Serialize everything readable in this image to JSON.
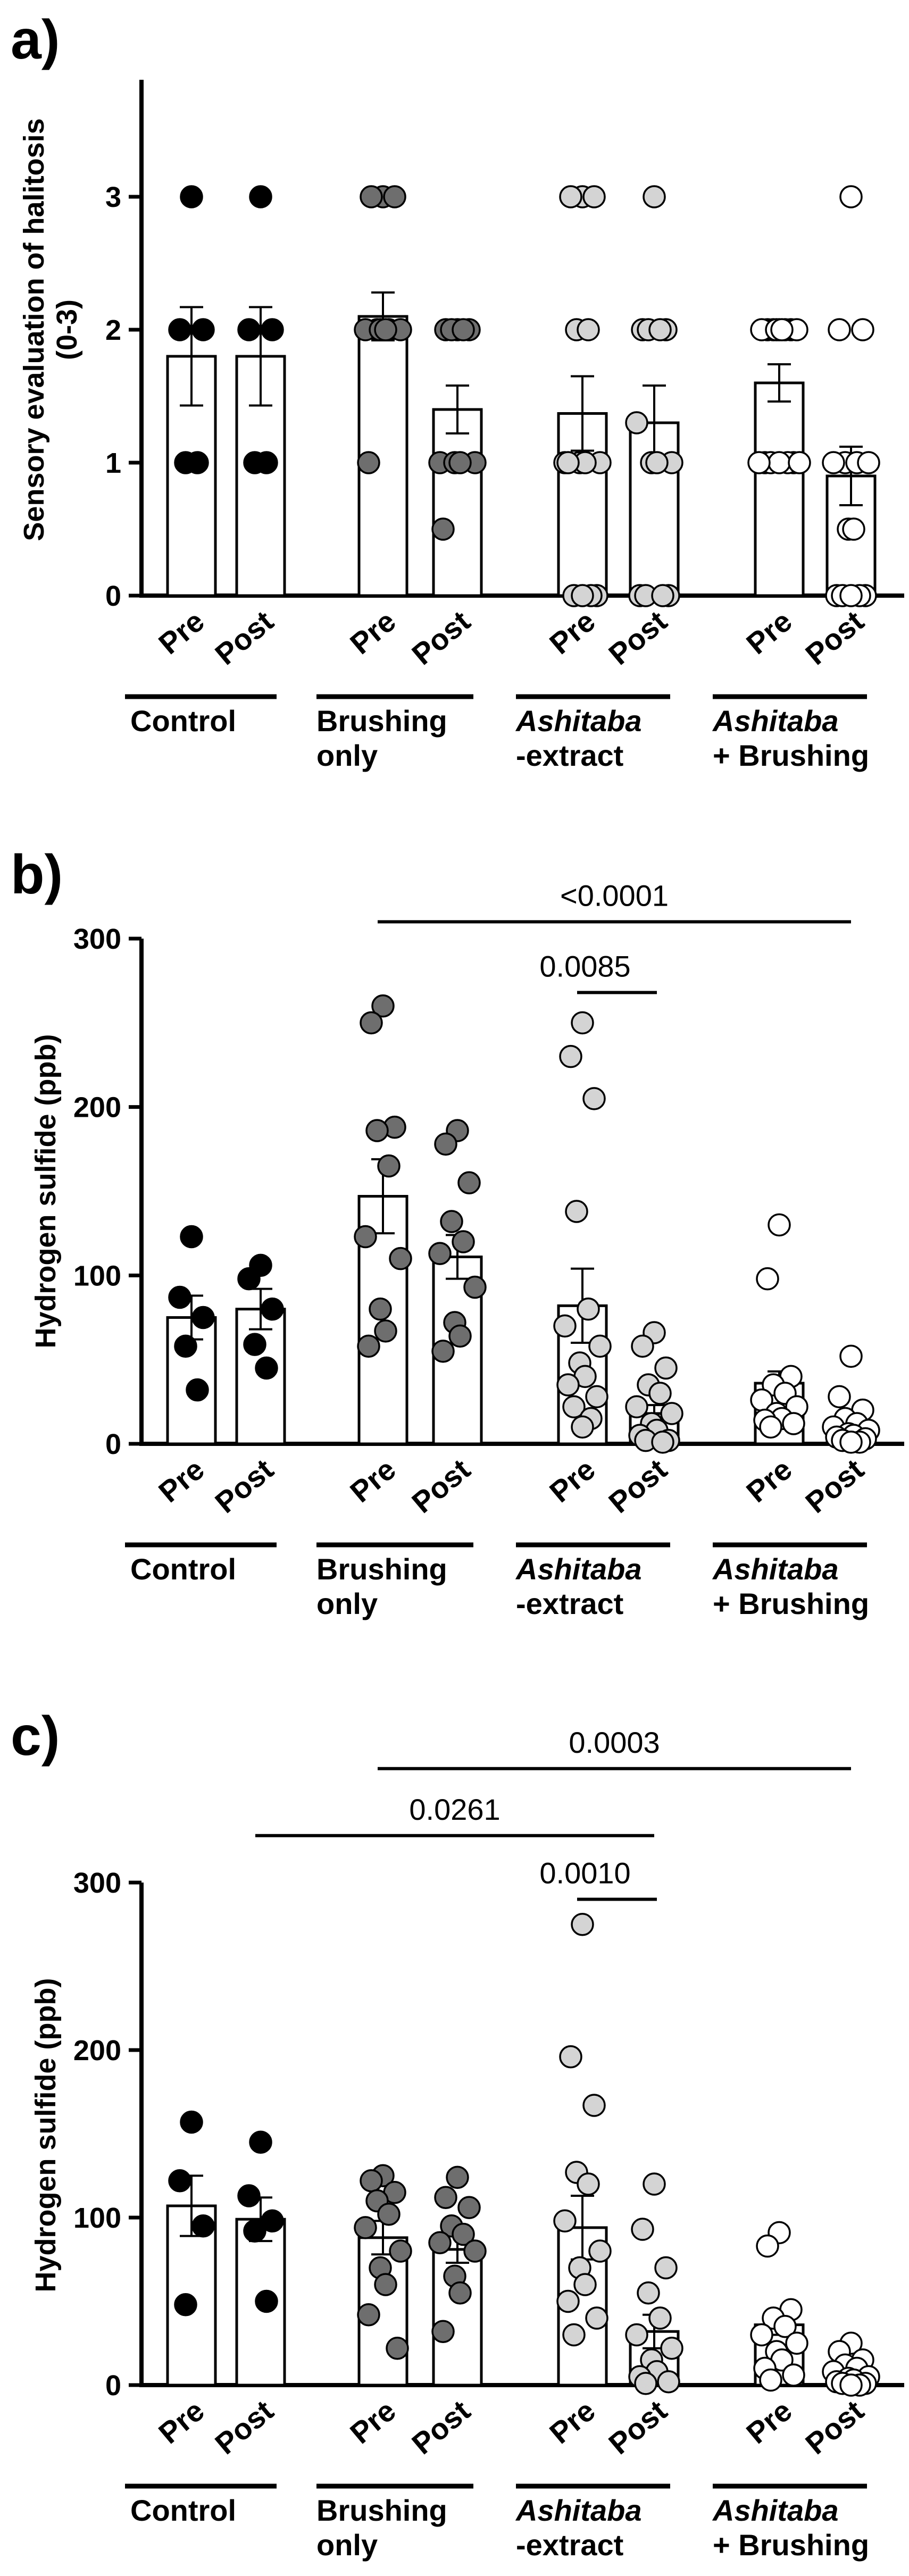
{
  "chart_data": [
    {
      "panel_label": "a)",
      "type": "bar",
      "ylabel_lines": [
        "Sensory evaluation of halitosis",
        "(0-3)"
      ],
      "ylim": [
        0,
        4
      ],
      "yticks": [
        "0",
        "1",
        "2",
        "3"
      ],
      "xtick_labels": [
        "Pre",
        "Post",
        "Pre",
        "Post",
        "Pre",
        "Post",
        "Pre",
        "Post"
      ],
      "groups": [
        {
          "line1": "Control",
          "line1_italic": false,
          "line2": ""
        },
        {
          "line1": "Brushing",
          "line1_italic": false,
          "line2": "only"
        },
        {
          "line1": "Ashitaba",
          "line1_italic": true,
          "line2": "-extract"
        },
        {
          "line1": "Ashitaba",
          "line1_italic": true,
          "line2": "+ Brushing"
        }
      ],
      "series": [
        {
          "name": "Control Pre",
          "color": "#000000",
          "mean": 1.8,
          "sem": 0.37,
          "points": [
            3,
            2,
            2,
            1,
            1
          ]
        },
        {
          "name": "Control Post",
          "color": "#000000",
          "mean": 1.8,
          "sem": 0.37,
          "points": [
            3,
            2,
            2,
            1,
            1
          ]
        },
        {
          "name": "Brushing only Pre",
          "color": "#6e6e6e",
          "mean": 2.1,
          "sem": 0.18,
          "points": [
            3,
            3,
            3,
            2,
            2,
            2,
            2,
            2,
            2,
            1
          ]
        },
        {
          "name": "Brushing only Post",
          "color": "#6e6e6e",
          "mean": 1.4,
          "sem": 0.18,
          "points": [
            2,
            2,
            2,
            2,
            2,
            1,
            1,
            1,
            1,
            0.5
          ]
        },
        {
          "name": "Ashitaba-extract Pre",
          "color": "#d4d4d4",
          "mean": 1.37,
          "sem": 0.28,
          "points": [
            3,
            3,
            3,
            2,
            2,
            1,
            1,
            1,
            1,
            1,
            0,
            0,
            0,
            0
          ]
        },
        {
          "name": "Ashitaba-extract Post",
          "color": "#d4d4d4",
          "mean": 1.3,
          "sem": 0.28,
          "points": [
            3,
            2,
            2,
            2,
            2,
            1.3,
            1,
            1,
            1,
            0,
            0,
            0,
            0
          ]
        },
        {
          "name": "Ashitaba + Brushing Pre",
          "color": "#ffffff",
          "mean": 1.6,
          "sem": 0.14,
          "points": [
            2,
            2,
            2,
            2,
            2,
            2,
            2,
            2,
            2,
            1,
            1,
            1,
            1,
            1,
            1,
            1
          ]
        },
        {
          "name": "Ashitaba + Brushing Post",
          "color": "#ffffff",
          "mean": 0.9,
          "sem": 0.22,
          "points": [
            3,
            2,
            2,
            1,
            1,
            1,
            1,
            0.5,
            0.5,
            0,
            0,
            0,
            0,
            0
          ]
        }
      ],
      "significance": []
    },
    {
      "panel_label": "b)",
      "type": "bar",
      "ylabel_lines": [
        "Hydrogen sulfide (ppb)"
      ],
      "ylim": [
        0,
        300
      ],
      "yticks": [
        "0",
        "100",
        "200",
        "300"
      ],
      "xtick_labels": [
        "Pre",
        "Post",
        "Pre",
        "Post",
        "Pre",
        "Post",
        "Pre",
        "Post"
      ],
      "groups": [
        {
          "line1": "Control",
          "line1_italic": false,
          "line2": ""
        },
        {
          "line1": "Brushing",
          "line1_italic": false,
          "line2": "only"
        },
        {
          "line1": "Ashitaba",
          "line1_italic": true,
          "line2": "-extract"
        },
        {
          "line1": "Ashitaba",
          "line1_italic": true,
          "line2": "+ Brushing"
        }
      ],
      "series": [
        {
          "name": "Control Pre",
          "color": "#000000",
          "mean": 75,
          "sem": 13,
          "points": [
            123,
            87,
            75,
            58,
            32
          ]
        },
        {
          "name": "Control Post",
          "color": "#000000",
          "mean": 80,
          "sem": 12,
          "points": [
            106,
            98,
            80,
            59,
            45
          ]
        },
        {
          "name": "Brushing only Pre",
          "color": "#6e6e6e",
          "mean": 147,
          "sem": 22,
          "points": [
            260,
            250,
            188,
            186,
            165,
            123,
            110,
            80,
            67,
            58
          ]
        },
        {
          "name": "Brushing only Post",
          "color": "#6e6e6e",
          "mean": 111,
          "sem": 13,
          "points": [
            186,
            178,
            155,
            132,
            120,
            113,
            93,
            72,
            64,
            55
          ]
        },
        {
          "name": "Ashitaba-extract Pre",
          "color": "#d4d4d4",
          "mean": 82,
          "sem": 22,
          "points": [
            250,
            230,
            205,
            138,
            80,
            70,
            58,
            48,
            40,
            35,
            28,
            22,
            15,
            10
          ]
        },
        {
          "name": "Ashitaba-extract Post",
          "color": "#d4d4d4",
          "mean": 18,
          "sem": 5,
          "points": [
            66,
            58,
            45,
            35,
            30,
            22,
            18,
            12,
            8,
            5,
            2,
            2,
            1
          ]
        },
        {
          "name": "Ashitaba + Brushing Pre",
          "color": "#ffffff",
          "mean": 36,
          "sem": 7,
          "points": [
            130,
            98,
            40,
            35,
            30,
            26,
            22,
            18,
            15,
            14,
            12,
            10
          ]
        },
        {
          "name": "Ashitaba + Brushing Post",
          "color": "#ffffff",
          "mean": 12,
          "sem": 4,
          "points": [
            52,
            28,
            20,
            15,
            12,
            10,
            8,
            6,
            5,
            4,
            3,
            2,
            1,
            1
          ]
        }
      ],
      "significance": [
        {
          "from_bar": 2,
          "to_bar": 7,
          "y": 310,
          "label": "<0.0001"
        },
        {
          "from_bar": 4,
          "to_bar": 5,
          "y": 268,
          "label": "0.0085"
        }
      ]
    },
    {
      "panel_label": "c)",
      "type": "bar",
      "ylabel_lines": [
        "Hydrogen sulfide (ppb)"
      ],
      "ylim": [
        0,
        300
      ],
      "yticks": [
        "0",
        "100",
        "200",
        "300"
      ],
      "xtick_labels": [
        "Pre",
        "Post",
        "Pre",
        "Post",
        "Pre",
        "Post",
        "Pre",
        "Post"
      ],
      "groups": [
        {
          "line1": "Control",
          "line1_italic": false,
          "line2": ""
        },
        {
          "line1": "Brushing",
          "line1_italic": false,
          "line2": "only"
        },
        {
          "line1": "Ashitaba",
          "line1_italic": true,
          "line2": "-extract"
        },
        {
          "line1": "Ashitaba",
          "line1_italic": true,
          "line2": "+ Brushing"
        }
      ],
      "series": [
        {
          "name": "Control Pre",
          "color": "#000000",
          "mean": 107,
          "sem": 18,
          "points": [
            157,
            122,
            95,
            48
          ]
        },
        {
          "name": "Control Post",
          "color": "#000000",
          "mean": 99,
          "sem": 13,
          "points": [
            145,
            113,
            98,
            92,
            50
          ]
        },
        {
          "name": "Brushing only Pre",
          "color": "#6e6e6e",
          "mean": 88,
          "sem": 10,
          "points": [
            125,
            122,
            115,
            110,
            102,
            94,
            80,
            70,
            60,
            42,
            22
          ]
        },
        {
          "name": "Brushing only Post",
          "color": "#6e6e6e",
          "mean": 81,
          "sem": 8,
          "points": [
            124,
            112,
            106,
            95,
            90,
            85,
            80,
            65,
            55,
            32
          ]
        },
        {
          "name": "Ashitaba-extract Pre",
          "color": "#d4d4d4",
          "mean": 94,
          "sem": 19,
          "points": [
            275,
            196,
            167,
            127,
            120,
            98,
            80,
            70,
            60,
            50,
            40,
            30
          ]
        },
        {
          "name": "Ashitaba-extract Post",
          "color": "#d4d4d4",
          "mean": 32,
          "sem": 10,
          "points": [
            120,
            93,
            70,
            55,
            40,
            30,
            22,
            15,
            8,
            5,
            2,
            1
          ]
        },
        {
          "name": "Ashitaba + Brushing Pre",
          "color": "#ffffff",
          "mean": 36,
          "sem": 6,
          "points": [
            91,
            83,
            45,
            40,
            35,
            30,
            25,
            20,
            15,
            10,
            6,
            3
          ]
        },
        {
          "name": "Ashitaba + Brushing Post",
          "color": "#ffffff",
          "mean": 6,
          "sem": 2,
          "points": [
            25,
            20,
            15,
            12,
            10,
            8,
            5,
            4,
            3,
            2,
            1,
            1,
            0,
            0
          ]
        }
      ],
      "significance": [
        {
          "from_bar": 2,
          "to_bar": 7,
          "y": 368,
          "label": "0.0003"
        },
        {
          "from_bar": 1,
          "to_bar": 5,
          "y": 328,
          "label": "0.0261"
        },
        {
          "from_bar": 4,
          "to_bar": 5,
          "y": 290,
          "label": "0.0010"
        }
      ]
    }
  ]
}
